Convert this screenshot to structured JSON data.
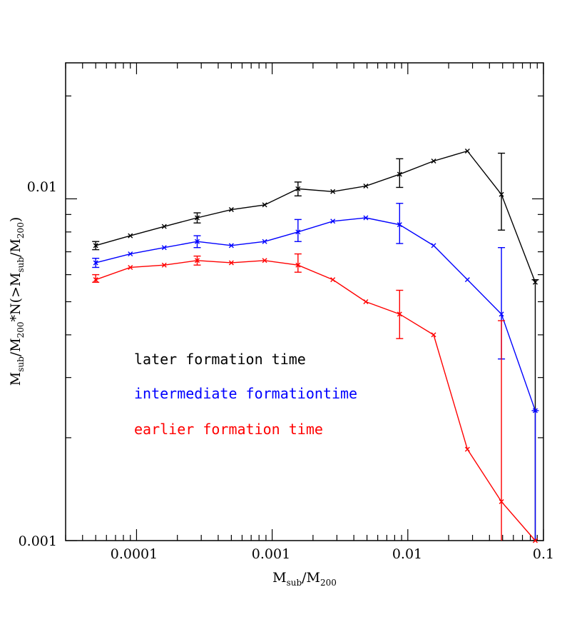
{
  "chart_data": {
    "type": "line",
    "x_scale": "log",
    "y_scale": "log",
    "xlim": [
      3e-05,
      0.1
    ],
    "ylim": [
      0.001,
      0.025
    ],
    "x_ticks": [
      {
        "value": 0.0001,
        "label": "0.0001"
      },
      {
        "value": 0.001,
        "label": "0.001"
      },
      {
        "value": 0.01,
        "label": "0.01"
      },
      {
        "value": 0.1,
        "label": "0.1"
      }
    ],
    "y_ticks": [
      {
        "value": 0.001,
        "label": "0.001"
      },
      {
        "value": 0.01,
        "label": "0.01"
      }
    ],
    "xlabel": {
      "main": "M",
      "sub1": "sub",
      "slash": "/M",
      "sub2": "200"
    },
    "ylabel": {
      "p1": "M",
      "s1": "sub",
      "p2": "/M",
      "s2": "200",
      "p3": "*N(>M",
      "s3": "sub",
      "p4": "/M",
      "s4": "200",
      "p5": ")"
    },
    "x": [
      5e-05,
      9e-05,
      0.00016,
      0.00028,
      0.0005,
      0.00088,
      0.00155,
      0.0028,
      0.0049,
      0.0087,
      0.0155,
      0.0275,
      0.049,
      0.087
    ],
    "series": [
      {
        "name": "later formation time",
        "color": "#000000",
        "values": [
          0.0073,
          0.0078,
          0.0083,
          0.0088,
          0.0093,
          0.0096,
          0.0107,
          0.0105,
          0.0109,
          0.0118,
          0.0129,
          0.0138,
          0.0103,
          0.0057
        ],
        "error_bars": [
          {
            "index": 0,
            "low": 0.0071,
            "high": 0.0075
          },
          {
            "index": 3,
            "low": 0.0085,
            "high": 0.0091
          },
          {
            "index": 6,
            "low": 0.0102,
            "high": 0.0112
          },
          {
            "index": 9,
            "low": 0.0108,
            "high": 0.0131
          },
          {
            "index": 12,
            "low": 0.0081,
            "high": 0.0136
          },
          {
            "index": 13,
            "low": 0.001,
            "high": 0.0058
          }
        ]
      },
      {
        "name": "intermediate formationtime",
        "color": "#0000ff",
        "values": [
          0.0065,
          0.0069,
          0.0072,
          0.0075,
          0.0073,
          0.0075,
          0.008,
          0.0086,
          0.0088,
          0.0084,
          0.0073,
          0.0058,
          0.0046,
          0.0024
        ],
        "error_bars": [
          {
            "index": 0,
            "low": 0.0063,
            "high": 0.0067
          },
          {
            "index": 3,
            "low": 0.0072,
            "high": 0.0078
          },
          {
            "index": 6,
            "low": 0.0075,
            "high": 0.0087
          },
          {
            "index": 9,
            "low": 0.0074,
            "high": 0.0097
          },
          {
            "index": 12,
            "low": 0.0034,
            "high": 0.0072
          },
          {
            "index": 13,
            "low": 0.001,
            "high": 0.0024
          }
        ]
      },
      {
        "name": "earlier formation time",
        "color": "#ff0000",
        "values": [
          0.0058,
          0.0063,
          0.0064,
          0.0066,
          0.0065,
          0.0066,
          0.0064,
          0.0058,
          0.005,
          0.0046,
          0.004,
          0.00185,
          0.0013,
          0.00095
        ],
        "error_bars": [
          {
            "index": 0,
            "low": 0.0057,
            "high": 0.006
          },
          {
            "index": 3,
            "low": 0.0064,
            "high": 0.0068
          },
          {
            "index": 6,
            "low": 0.0061,
            "high": 0.0069
          },
          {
            "index": 9,
            "low": 0.0039,
            "high": 0.0054
          },
          {
            "index": 12,
            "low": 0.001,
            "high": 0.0044
          }
        ]
      }
    ],
    "legend_position": "lower-left"
  }
}
